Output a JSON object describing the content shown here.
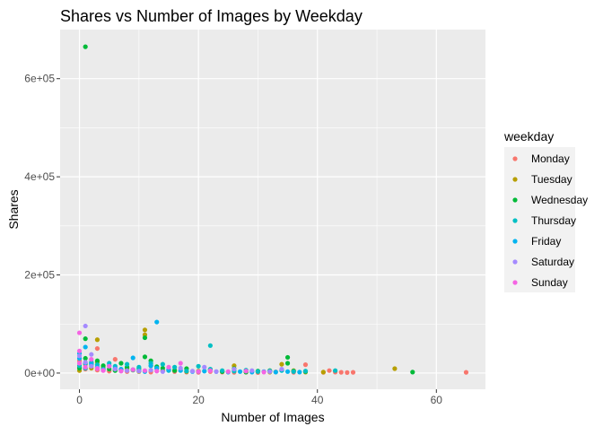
{
  "chart_data": {
    "type": "scatter",
    "title": "Shares vs Number of Images by Weekday",
    "xlabel": "Number of Images",
    "ylabel": "Shares",
    "xlim": [
      -3.25,
      68.25
    ],
    "ylim": [
      -33000,
      700000
    ],
    "x_ticks": [
      0,
      20,
      40,
      60
    ],
    "x_tick_labels": [
      "0",
      "20",
      "40",
      "60"
    ],
    "y_ticks": [
      0,
      200000,
      400000,
      600000
    ],
    "y_tick_labels": [
      "0e+00",
      "2e+05",
      "4e+05",
      "6e+05"
    ],
    "grid": true,
    "legend": {
      "title": "weekday",
      "position": "right"
    },
    "series": [
      {
        "name": "Monday",
        "color": "#F8766D",
        "points": [
          [
            0,
            12000
          ],
          [
            0,
            25000
          ],
          [
            1,
            8000
          ],
          [
            2,
            15000
          ],
          [
            3,
            50000
          ],
          [
            3,
            6000
          ],
          [
            4,
            9000
          ],
          [
            5,
            4000
          ],
          [
            6,
            28000
          ],
          [
            7,
            7000
          ],
          [
            8,
            3000
          ],
          [
            10,
            5000
          ],
          [
            12,
            2000
          ],
          [
            14,
            4000
          ],
          [
            16,
            3000
          ],
          [
            18,
            2000
          ],
          [
            20,
            1500
          ],
          [
            22,
            3000
          ],
          [
            24,
            2000
          ],
          [
            26,
            1500
          ],
          [
            28,
            2000
          ],
          [
            30,
            1000
          ],
          [
            33,
            2500
          ],
          [
            36,
            1500
          ],
          [
            38,
            17000
          ],
          [
            41,
            1500
          ],
          [
            42,
            5000
          ],
          [
            43,
            2000
          ],
          [
            44,
            1500
          ],
          [
            45,
            1000
          ],
          [
            46,
            1500
          ],
          [
            65,
            1500
          ]
        ]
      },
      {
        "name": "Tuesday",
        "color": "#B79F00",
        "points": [
          [
            0,
            5000
          ],
          [
            1,
            18000
          ],
          [
            2,
            10000
          ],
          [
            3,
            68000
          ],
          [
            3,
            22000
          ],
          [
            4,
            12000
          ],
          [
            6,
            6000
          ],
          [
            8,
            9000
          ],
          [
            10,
            3000
          ],
          [
            11,
            88000
          ],
          [
            11,
            78000
          ],
          [
            12,
            15000
          ],
          [
            14,
            5000
          ],
          [
            16,
            6000
          ],
          [
            18,
            3000
          ],
          [
            20,
            4000
          ],
          [
            22,
            7000
          ],
          [
            24,
            3000
          ],
          [
            26,
            15000
          ],
          [
            28,
            2000
          ],
          [
            30,
            3000
          ],
          [
            32,
            2000
          ],
          [
            34,
            18000
          ],
          [
            36,
            5000
          ],
          [
            38,
            2000
          ],
          [
            41,
            2000
          ],
          [
            53,
            9000
          ]
        ]
      },
      {
        "name": "Wednesday",
        "color": "#00BA38",
        "points": [
          [
            1,
            665000
          ],
          [
            1,
            70000
          ],
          [
            0,
            10000
          ],
          [
            1,
            30000
          ],
          [
            2,
            20000
          ],
          [
            3,
            25000
          ],
          [
            4,
            15000
          ],
          [
            5,
            8000
          ],
          [
            6,
            5000
          ],
          [
            7,
            20000
          ],
          [
            8,
            12000
          ],
          [
            9,
            6000
          ],
          [
            10,
            9000
          ],
          [
            11,
            33000
          ],
          [
            11,
            72000
          ],
          [
            12,
            25000
          ],
          [
            13,
            13000
          ],
          [
            14,
            10000
          ],
          [
            15,
            6000
          ],
          [
            16,
            5000
          ],
          [
            18,
            9000
          ],
          [
            20,
            3000
          ],
          [
            22,
            7000
          ],
          [
            24,
            3000
          ],
          [
            26,
            9000
          ],
          [
            28,
            2000
          ],
          [
            30,
            4000
          ],
          [
            32,
            5000
          ],
          [
            34,
            6000
          ],
          [
            35,
            32000
          ],
          [
            35,
            20000
          ],
          [
            36,
            4000
          ],
          [
            38,
            3000
          ],
          [
            56,
            2000
          ]
        ]
      },
      {
        "name": "Thursday",
        "color": "#00BFC4",
        "points": [
          [
            0,
            15000
          ],
          [
            1,
            10000
          ],
          [
            2,
            22000
          ],
          [
            3,
            17000
          ],
          [
            4,
            8000
          ],
          [
            5,
            20000
          ],
          [
            6,
            14000
          ],
          [
            7,
            6000
          ],
          [
            8,
            18000
          ],
          [
            9,
            7000
          ],
          [
            10,
            12000
          ],
          [
            12,
            20000
          ],
          [
            13,
            10000
          ],
          [
            14,
            18000
          ],
          [
            15,
            5000
          ],
          [
            16,
            12000
          ],
          [
            18,
            4000
          ],
          [
            20,
            14000
          ],
          [
            22,
            56000
          ],
          [
            22,
            8000
          ],
          [
            24,
            5000
          ],
          [
            26,
            4000
          ],
          [
            28,
            6000
          ],
          [
            30,
            3000
          ],
          [
            32,
            4000
          ],
          [
            34,
            5000
          ],
          [
            36,
            3000
          ],
          [
            38,
            4000
          ],
          [
            43,
            5000
          ]
        ]
      },
      {
        "name": "Friday",
        "color": "#00B4F0",
        "points": [
          [
            0,
            30000
          ],
          [
            0,
            40000
          ],
          [
            1,
            53000
          ],
          [
            1,
            20000
          ],
          [
            2,
            18000
          ],
          [
            3,
            12000
          ],
          [
            4,
            7000
          ],
          [
            5,
            15000
          ],
          [
            6,
            10000
          ],
          [
            7,
            8000
          ],
          [
            9,
            31000
          ],
          [
            10,
            5000
          ],
          [
            11,
            3000
          ],
          [
            12,
            15000
          ],
          [
            13,
            104000
          ],
          [
            13,
            10000
          ],
          [
            15,
            7000
          ],
          [
            17,
            5000
          ],
          [
            19,
            3000
          ],
          [
            21,
            4000
          ],
          [
            23,
            3000
          ],
          [
            25,
            2000
          ],
          [
            27,
            3000
          ],
          [
            29,
            2000
          ],
          [
            31,
            3000
          ],
          [
            33,
            2000
          ],
          [
            35,
            3000
          ],
          [
            37,
            2000
          ]
        ]
      },
      {
        "name": "Saturday",
        "color": "#A58AFF",
        "points": [
          [
            0,
            35000
          ],
          [
            1,
            96000
          ],
          [
            1,
            22000
          ],
          [
            2,
            38000
          ],
          [
            2,
            14000
          ],
          [
            3,
            10000
          ],
          [
            4,
            6000
          ],
          [
            6,
            8000
          ],
          [
            8,
            5000
          ],
          [
            10,
            4000
          ],
          [
            12,
            6000
          ],
          [
            14,
            3000
          ],
          [
            17,
            10000
          ],
          [
            19,
            4000
          ],
          [
            21,
            12000
          ],
          [
            23,
            3000
          ],
          [
            26,
            8000
          ],
          [
            29,
            5000
          ],
          [
            32,
            3000
          ],
          [
            34,
            8000
          ]
        ]
      },
      {
        "name": "Sunday",
        "color": "#F564E3",
        "points": [
          [
            0,
            82000
          ],
          [
            0,
            20000
          ],
          [
            0,
            45000
          ],
          [
            1,
            12000
          ],
          [
            2,
            28000
          ],
          [
            3,
            9000
          ],
          [
            4,
            5000
          ],
          [
            5,
            14000
          ],
          [
            7,
            4000
          ],
          [
            9,
            7000
          ],
          [
            11,
            5000
          ],
          [
            13,
            4000
          ],
          [
            15,
            12000
          ],
          [
            17,
            20000
          ],
          [
            20,
            3000
          ],
          [
            22,
            5000
          ],
          [
            25,
            3000
          ],
          [
            28,
            4000
          ],
          [
            31,
            2000
          ]
        ]
      }
    ]
  }
}
